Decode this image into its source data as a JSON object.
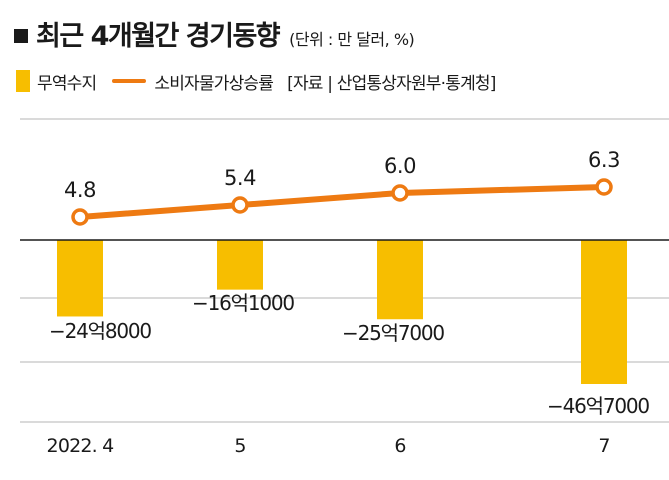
{
  "header": {
    "title": "최근 4개월간 경기동향",
    "unit": "(단위 : 만 달러, %)"
  },
  "legend": {
    "bar_label": "무역수지",
    "line_label": "소비자물가상승률",
    "source": "[자료 | 산업통상자원부·통계청]"
  },
  "colors": {
    "bar": "#F7BE00",
    "line": "#EE7A12",
    "grid": "#b5b5b5",
    "zero_line": "#1a1a1a"
  },
  "chart_data": {
    "type": "bar+line",
    "categories": [
      "2022. 4",
      "5",
      "6",
      "7"
    ],
    "series": [
      {
        "name": "무역수지",
        "type": "bar",
        "values": [
          -248000,
          -161000,
          -257000,
          -467000
        ],
        "labels": [
          "−24억8000",
          "−16억1000",
          "−25억7000",
          "−46억7000"
        ]
      },
      {
        "name": "소비자물가상승률",
        "type": "line",
        "values": [
          4.8,
          5.4,
          6.0,
          6.3
        ],
        "labels": [
          "4.8",
          "5.4",
          "6.0",
          "6.3"
        ]
      }
    ],
    "bar_ylim": [
      -480000,
      0
    ],
    "line_ylim": [
      2.8,
      7.3
    ],
    "grid": true
  }
}
